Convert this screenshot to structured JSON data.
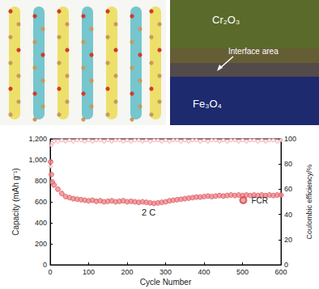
{
  "chart_data": {
    "type": "scatter",
    "x_label": "Cycle Number",
    "y_label": "Capacity (mAh g⁻¹)",
    "y2_label": "Coulombic efficiency/%",
    "annotations": [
      "2 C",
      "Cr₂O₃",
      "Interface area",
      "Fe₃O₄"
    ],
    "x": [
      1,
      3,
      5,
      10,
      20,
      30,
      40,
      50,
      60,
      70,
      80,
      90,
      100,
      110,
      120,
      130,
      140,
      150,
      160,
      170,
      180,
      190,
      200,
      210,
      220,
      230,
      240,
      250,
      260,
      270,
      280,
      290,
      300,
      310,
      320,
      330,
      340,
      350,
      360,
      370,
      380,
      390,
      400,
      410,
      420,
      430,
      440,
      450,
      460,
      470,
      480,
      490,
      500,
      510,
      520,
      530,
      540,
      550,
      560,
      570,
      580,
      590,
      600
    ],
    "series": [
      {
        "name": "FCR",
        "color": "#f4868a",
        "marker": "circle",
        "values": [
          980,
          860,
          790,
          760,
          720,
          680,
          650,
          640,
          630,
          625,
          620,
          615,
          610,
          615,
          605,
          610,
          600,
          605,
          610,
          600,
          605,
          610,
          600,
          605,
          600,
          595,
          600,
          595,
          590,
          585,
          590,
          595,
          600,
          610,
          615,
          620,
          625,
          630,
          635,
          640,
          645,
          645,
          650,
          655,
          650,
          655,
          660,
          655,
          660,
          665,
          660,
          665,
          660,
          665,
          660,
          665,
          660,
          665,
          660,
          665,
          660,
          665,
          665
        ]
      },
      {
        "color": "#f4868a",
        "marker": "hollow_circle",
        "axis": "y2",
        "values": [
          78,
          95,
          97,
          98,
          98,
          99,
          98,
          99,
          98,
          99,
          99,
          98,
          99,
          98,
          99,
          99,
          98,
          99,
          98,
          99,
          99,
          98,
          99,
          98,
          99,
          99,
          98,
          99,
          98,
          99,
          99,
          98,
          99,
          98,
          99,
          99,
          98,
          99,
          98,
          99,
          99,
          98,
          99,
          98,
          99,
          99,
          98,
          99,
          98,
          99,
          99,
          98,
          99,
          98,
          99,
          99,
          98,
          99,
          98,
          99,
          99,
          98,
          99
        ]
      }
    ],
    "xlim": [
      0,
      600
    ],
    "xticks": [
      0,
      100,
      200,
      300,
      400,
      500,
      600
    ],
    "ylim": [
      0,
      1200
    ],
    "yticks": [
      0,
      200,
      400,
      600,
      800,
      1000,
      1200
    ],
    "y2lim": [
      0,
      100
    ],
    "y2ticks": [
      0,
      20,
      40,
      60,
      80,
      100
    ],
    "grid": false,
    "legend": "right"
  }
}
